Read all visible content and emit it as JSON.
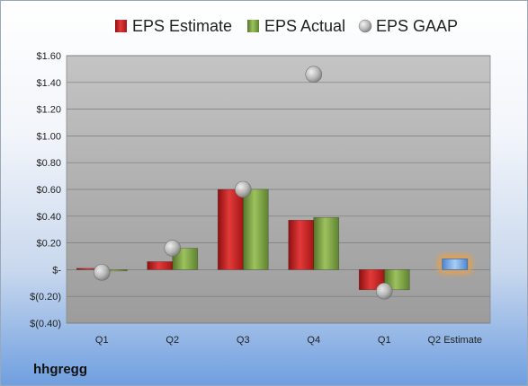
{
  "brand": "hhgregg",
  "colors": {
    "estimate": "#cc1f1f",
    "actual": "#7ea443",
    "gaap": "#a9a9a9",
    "highlight_estimate": "#6fa3e0",
    "highlight_glow": "#f0a040"
  },
  "chart_data": {
    "type": "bar",
    "categories": [
      "Q1",
      "Q2",
      "Q3",
      "Q4",
      "Q1",
      "Q2 Estimate"
    ],
    "series": [
      {
        "name": "EPS Estimate",
        "values": [
          0.01,
          0.06,
          0.6,
          0.37,
          -0.15,
          null
        ]
      },
      {
        "name": "EPS Actual",
        "values": [
          -0.01,
          0.16,
          0.6,
          0.39,
          -0.15,
          null
        ]
      },
      {
        "name": "EPS GAAP",
        "values": [
          -0.02,
          0.16,
          0.6,
          1.46,
          -0.16,
          null
        ]
      }
    ],
    "highlight": {
      "category": "Q2 Estimate",
      "value": 0.08
    },
    "yticks": [
      {
        "value": -0.4,
        "label": "$(0.40)"
      },
      {
        "value": -0.2,
        "label": "$(0.20)"
      },
      {
        "value": 0.0,
        "label": "$-"
      },
      {
        "value": 0.2,
        "label": "$0.20"
      },
      {
        "value": 0.4,
        "label": "$0.40"
      },
      {
        "value": 0.6,
        "label": "$0.60"
      },
      {
        "value": 0.8,
        "label": "$0.80"
      },
      {
        "value": 1.0,
        "label": "$1.00"
      },
      {
        "value": 1.2,
        "label": "$1.20"
      },
      {
        "value": 1.4,
        "label": "$1.40"
      },
      {
        "value": 1.6,
        "label": "$1.60"
      }
    ],
    "ylim": [
      -0.4,
      1.6
    ],
    "legend_position": "top",
    "grid": true
  }
}
